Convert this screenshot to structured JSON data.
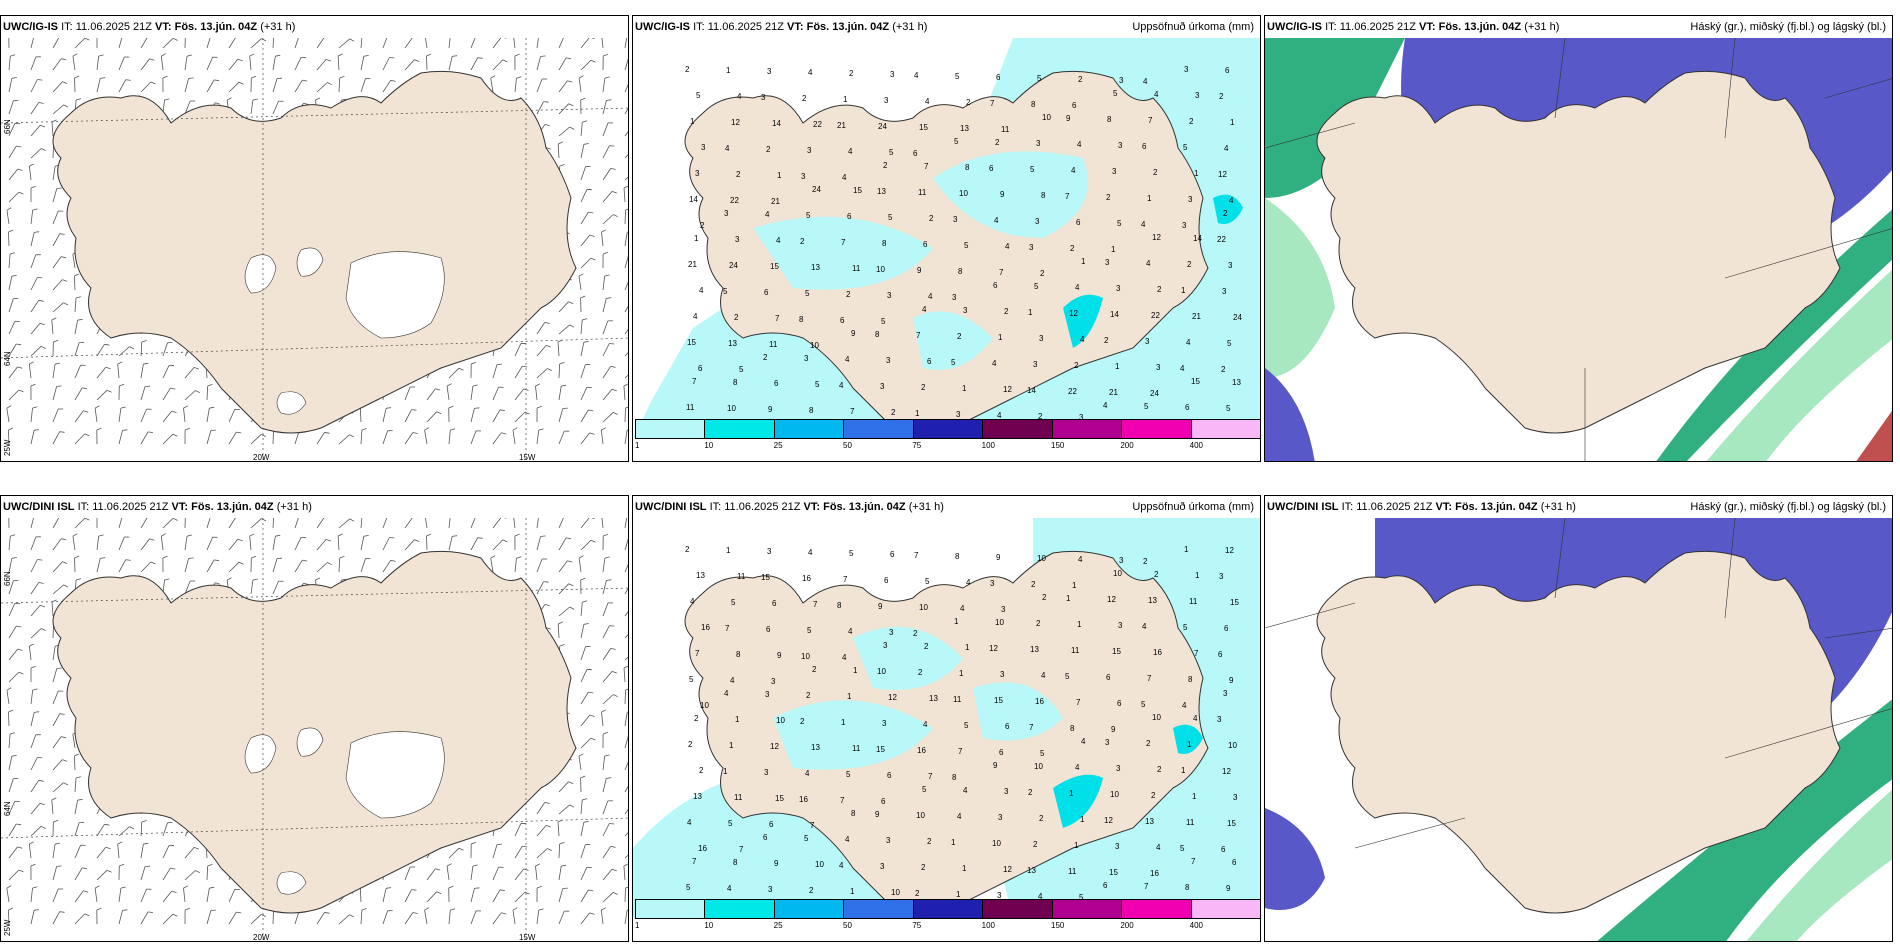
{
  "rows": [
    {
      "wind": {
        "model": "UWC/IG-IS",
        "it": "IT: 11.06.2025 21Z",
        "vt_label": "VT:",
        "vt": "Fös. 13.jún. 04Z",
        "lead": "(+31 h)"
      },
      "precip": {
        "model": "UWC/IG-IS",
        "it": "IT: 11.06.2025 21Z",
        "vt_label": "VT:",
        "vt": "Fös. 13.jún. 04Z",
        "lead": "(+31 h)",
        "title": "Uppsöfnuð úrkoma (mm)"
      },
      "cloud": {
        "model": "UWC/IG-IS",
        "it": "IT: 11.06.2025 21Z",
        "vt_label": "VT:",
        "vt": "Fös. 13.jún. 04Z",
        "lead": "(+31 h)",
        "title": "Háský (gr.), miðský (fj.bl.) og lágský (bl.)"
      }
    },
    {
      "wind": {
        "model": "UWC/DINI ISL",
        "it": "IT: 11.06.2025 21Z",
        "vt_label": "VT:",
        "vt": "Fös. 13.jún. 04Z",
        "lead": "(+31 h)"
      },
      "precip": {
        "model": "UWC/DINI ISL",
        "it": "IT: 11.06.2025 21Z",
        "vt_label": "VT:",
        "vt": "Fös. 13.jún. 04Z",
        "lead": "(+31 h)",
        "title": "Uppsöfnuð úrkoma (mm)"
      },
      "cloud": {
        "model": "UWC/DINI ISL",
        "it": "IT: 11.06.2025 21Z",
        "vt_label": "VT:",
        "vt": "Fös. 13.jún. 04Z",
        "lead": "(+31 h)",
        "title": "Háský (gr.), miðský (fj.bl.) og lágský (bl.)"
      }
    }
  ],
  "axes": {
    "lon_20w": "20W",
    "lon_15w": "15W",
    "lon_25w": "25W",
    "lat_66n": "66N",
    "lat_64n": "64N"
  },
  "colorbar": {
    "ticks": [
      "1",
      "10",
      "25",
      "50",
      "75",
      "100",
      "150",
      "200",
      "400"
    ],
    "colors": [
      "#b8f8f8",
      "#00e8e8",
      "#00b8f0",
      "#3070e8",
      "#2020b0",
      "#700050",
      "#b00090",
      "#f000b0",
      "#f8b8f8"
    ]
  },
  "map_colors": {
    "land": "#f2e4d4",
    "precip_light": "#b8f8f8",
    "precip_mid": "#00e0e8",
    "low_cloud": "#5858c8",
    "high_cloud": "#30b080",
    "high_cloud_light": "#a8e8c0",
    "ice": "#ffffff"
  },
  "precip_labels": {
    "top": [
      "2",
      "1",
      "3",
      "4",
      "2",
      "3",
      "4",
      "5",
      "6",
      "5",
      "2",
      "3",
      "4",
      "3",
      "6",
      "5",
      "4",
      "3",
      "2",
      "1",
      "3",
      "4",
      "2",
      "7",
      "8",
      "6",
      "5",
      "4",
      "3",
      "2",
      "1",
      "12",
      "14",
      "22",
      "21",
      "24",
      "15",
      "13",
      "11",
      "10",
      "9",
      "8",
      "7"
    ],
    "bottom": [
      "2",
      "1",
      "3",
      "4",
      "5",
      "6",
      "7",
      "8",
      "9",
      "10",
      "4",
      "3",
      "2",
      "1",
      "12",
      "13",
      "11",
      "15",
      "16",
      "7",
      "6",
      "5",
      "4",
      "3",
      "2",
      "1",
      "10"
    ]
  }
}
